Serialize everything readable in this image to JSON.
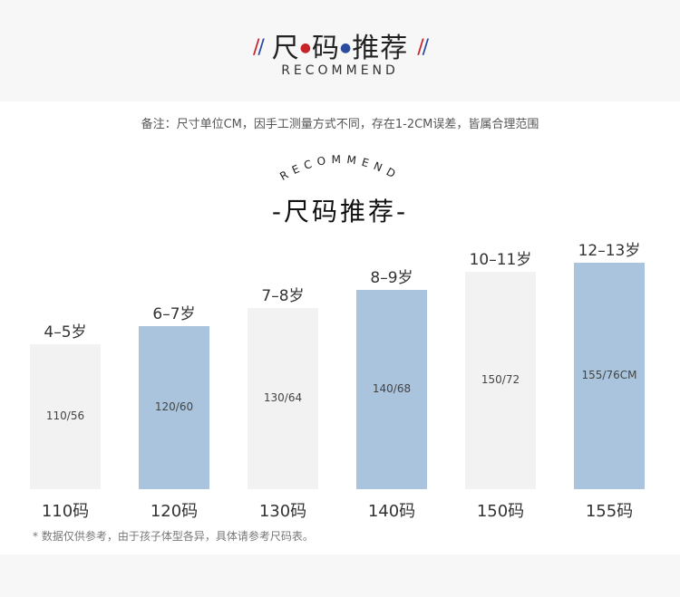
{
  "header": {
    "title_part1": "尺",
    "title_part2": "码",
    "title_part3": "推荐",
    "subtitle": "RECOMMEND"
  },
  "note": "备注：尺寸单位CM，因手工测量方式不同，存在1-2CM误差，皆属合理范围",
  "section": {
    "arc_text": "RECOMMEND",
    "title": "-尺码推荐-"
  },
  "colors": {
    "bar_light": "#f2f2f2",
    "bar_blue": "#a9c4dc",
    "accent_red": "#c9232a",
    "accent_blue": "#2b4ba0"
  },
  "chart_data": {
    "type": "bar",
    "categories": [
      "110码",
      "120码",
      "130码",
      "140码",
      "150码",
      "155码"
    ],
    "ages": [
      "4–5岁",
      "6–7岁",
      "7–8岁",
      "8–9岁",
      "10–11岁",
      "12–13岁"
    ],
    "value_labels": [
      "110/56",
      "120/60",
      "130/64",
      "140/68",
      "150/72",
      "155/76CM"
    ],
    "values": [
      110,
      120,
      130,
      140,
      150,
      155
    ],
    "colors": [
      "light",
      "blue",
      "light",
      "blue",
      "light",
      "blue"
    ],
    "ylim": [
      0,
      160
    ],
    "grid": false,
    "title": "-尺码推荐-"
  },
  "footnote": "* 数据仅供参考，由于孩子体型各异，具体请参考尺码表。"
}
